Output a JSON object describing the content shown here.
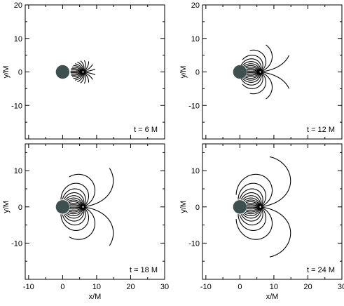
{
  "chart_data": {
    "type": "line",
    "description_layout": "2x2 grid of panels with shared axes",
    "x_axis": {
      "label": "x/M",
      "ticks": [
        -10,
        0,
        10,
        20,
        30
      ],
      "range": [
        -11,
        30
      ]
    },
    "y_axis": {
      "label": "y/M",
      "ticks": [
        -10,
        0,
        10,
        20
      ],
      "range": [
        -20,
        20
      ]
    },
    "black_hole": {
      "center": [
        0,
        0
      ],
      "radius": 2,
      "color": "#3d4f4f"
    },
    "line_color": "#000000",
    "panels": [
      {
        "id": "t6",
        "label": "t = 6 M",
        "t": 6,
        "source": [
          6,
          0
        ],
        "lines": 24,
        "max_length": 3.4,
        "x_ticks_shown": false,
        "y_tick_labels": [
          -10,
          0,
          10,
          20
        ]
      },
      {
        "id": "t12",
        "label": "t = 12 M",
        "t": 12,
        "source": [
          6,
          0
        ],
        "lines": 24,
        "max_length": 10,
        "x_ticks_shown": false,
        "y_tick_labels": [
          -10,
          0,
          10,
          20
        ]
      },
      {
        "id": "t18",
        "label": "t = 18 M",
        "t": 18,
        "source": [
          6,
          0
        ],
        "lines": 24,
        "max_length": 16,
        "x_ticks_shown": true,
        "y_tick_labels": [
          -10,
          0,
          10
        ]
      },
      {
        "id": "t24",
        "label": "t = 24 M",
        "t": 24,
        "source": [
          6,
          0
        ],
        "lines": 24,
        "max_length": 22,
        "x_ticks_shown": true,
        "y_tick_labels": [
          -10,
          0,
          10
        ]
      }
    ]
  }
}
